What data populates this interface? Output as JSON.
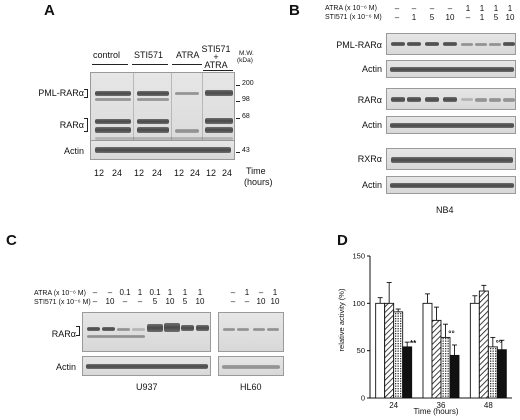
{
  "panelA": {
    "letter": "A",
    "groups": [
      "control",
      "STI571",
      "ATRA",
      "STI571",
      "+",
      "ATRA"
    ],
    "mw_label": "M.W.",
    "mw_unit": "(kDa)",
    "markers": [
      "200",
      "98",
      "68",
      "43"
    ],
    "bands": [
      "PML-RARα",
      "RARα",
      "Actin"
    ],
    "times": [
      "12",
      "24",
      "12",
      "24",
      "12",
      "24",
      "12",
      "24"
    ],
    "time_label": "Time",
    "time_unit": "(hours)"
  },
  "panelB": {
    "letter": "B",
    "row1_label": "ATRA (x 10⁻⁶ M)",
    "row2_label": "STI571 (x 10⁻⁶ M)",
    "row1": [
      "–",
      "–",
      "–",
      "–",
      "1",
      "1",
      "1",
      "1"
    ],
    "row2": [
      "–",
      "1",
      "5",
      "10",
      "–",
      "1",
      "5",
      "10"
    ],
    "bands": [
      "PML-RARα",
      "Actin",
      "RARα",
      "Actin",
      "RXRα",
      "Actin"
    ],
    "cell_line": "NB4"
  },
  "panelC": {
    "letter": "C",
    "row1_label": "ATRA (x 10⁻⁶ M)",
    "row2_label": "STI571 (x 10⁻⁶ M)",
    "row1": [
      "–",
      "–",
      "0.1",
      "1",
      "0.1",
      "1",
      "1",
      "1",
      "–",
      "1",
      "–",
      "1"
    ],
    "row2": [
      "–",
      "10",
      "–",
      "–",
      "5",
      "10",
      "5",
      "10",
      "–",
      "–",
      "10",
      "10"
    ],
    "bands": [
      "RARα",
      "Actin"
    ],
    "cell_lines": [
      "U937",
      "HL60"
    ]
  },
  "panelD": {
    "letter": "D",
    "chart_data": {
      "type": "bar",
      "categories": [
        "24",
        "36",
        "48"
      ],
      "xlabel": "Time (hours)",
      "ylabel": "relative activity (%)",
      "ylim": [
        0,
        150
      ],
      "yticks": [
        "0",
        "50",
        "100",
        "150"
      ],
      "series": [
        {
          "values": [
            100,
            100,
            100
          ],
          "errors": [
            6,
            10,
            8
          ],
          "fill": "white"
        },
        {
          "values": [
            100,
            82,
            113
          ],
          "errors": [
            22,
            14,
            6
          ],
          "fill": "hatch"
        },
        {
          "values": [
            91,
            64,
            54
          ],
          "errors": [
            3,
            14,
            10
          ],
          "fill": "dots"
        },
        {
          "values": [
            54,
            45,
            51
          ],
          "errors": [
            5,
            11,
            10
          ],
          "fill": "black"
        }
      ],
      "annotations": [
        {
          "category": "24",
          "series": 3,
          "text": "**"
        },
        {
          "category": "36",
          "series": 2,
          "text": "°°"
        },
        {
          "category": "48",
          "series": 2,
          "text": "°°"
        }
      ]
    }
  }
}
